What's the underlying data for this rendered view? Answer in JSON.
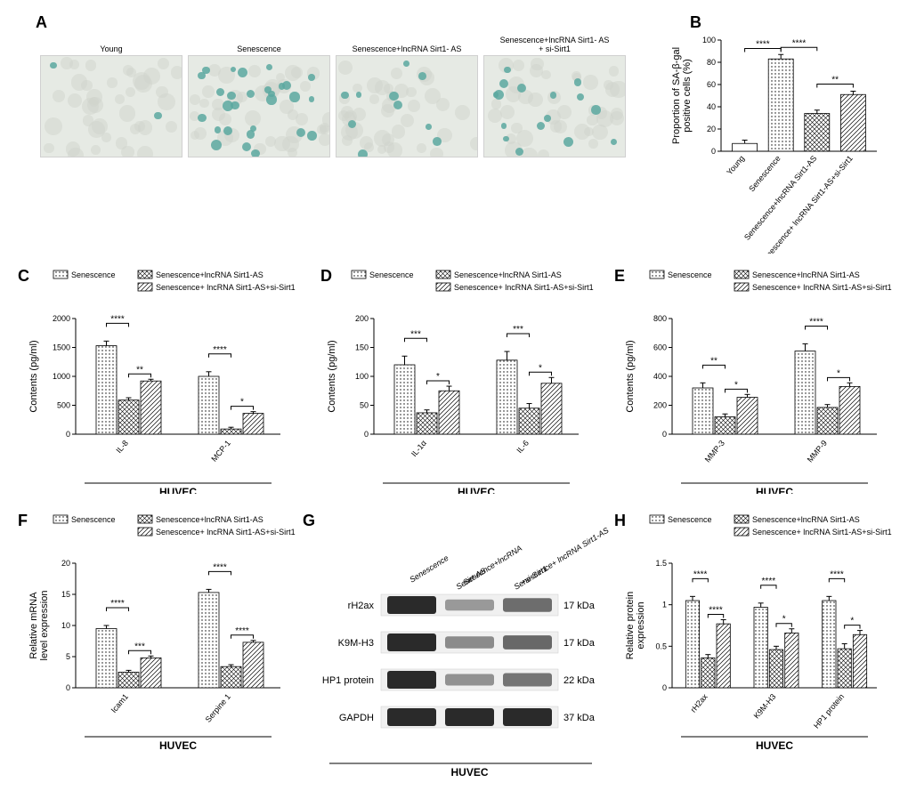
{
  "labels": {
    "A": "A",
    "B": "B",
    "C": "C",
    "D": "D",
    "E": "E",
    "F": "F",
    "G": "G",
    "H": "H"
  },
  "micro": {
    "titles": [
      "Young",
      "Senescence",
      "Senescence+lncRNA Sirt1- AS",
      "Senescence+lncRNA Sirt1- AS\n+ si-Sirt1"
    ],
    "bg": "#e6eae4",
    "cell_base": "#cfd3cc",
    "blue": "#5aa8a0",
    "blue_counts": [
      2,
      28,
      10,
      16
    ]
  },
  "colors": {
    "bar_outline": "#000000",
    "fill_white": "#ffffff",
    "axis": "#000000"
  },
  "patterns": {
    "young": {
      "type": "blank"
    },
    "sen": {
      "type": "dots",
      "spacing": 4
    },
    "senAS": {
      "type": "check",
      "spacing": 4
    },
    "senASsi": {
      "type": "diag",
      "spacing": 4
    }
  },
  "B": {
    "ytitle": "Proportion of SA-β-gal\npositive cells (%)",
    "ymax": 100,
    "ytick": 20,
    "cats": [
      "Young",
      "Senescence",
      "Senescence+lncRNA Sirt1-AS",
      "Senescence+ lncRNA Sirt1-AS+si-Sirt1"
    ],
    "vals": [
      7,
      83,
      34,
      51
    ],
    "errs": [
      3,
      4,
      3,
      3
    ],
    "fills": [
      "young",
      "sen",
      "senAS",
      "senASsi"
    ],
    "sigs": [
      {
        "i": 0,
        "j": 1,
        "t": "****",
        "lvl": 0
      },
      {
        "i": 1,
        "j": 2,
        "t": "****",
        "lvl": 0
      },
      {
        "i": 2,
        "j": 3,
        "t": "**",
        "lvl": 0
      }
    ]
  },
  "legend3": {
    "items": [
      {
        "f": "sen",
        "t": "Senescence"
      },
      {
        "f": "senAS",
        "t": "Senescence+lncRNA Sirt1-AS"
      },
      {
        "f": "senASsi",
        "t": "Senescence+ lncRNA Sirt1-AS+si-Sirt1"
      }
    ]
  },
  "C": {
    "ytitle": "Contents (pg/ml)",
    "ymax": 2000,
    "ytick": 500,
    "groups": [
      "IL-8",
      "MCP-1"
    ],
    "series": [
      "sen",
      "senAS",
      "senASsi"
    ],
    "vals": [
      [
        1530,
        590,
        920
      ],
      [
        1000,
        90,
        360
      ]
    ],
    "errs": [
      [
        80,
        40,
        30
      ],
      [
        80,
        30,
        30
      ]
    ],
    "sigs": [
      {
        "g": 0,
        "i": 0,
        "j": 1,
        "t": "****",
        "lvl": 1
      },
      {
        "g": 0,
        "i": 1,
        "j": 2,
        "t": "**",
        "lvl": 0
      },
      {
        "g": 1,
        "i": 0,
        "j": 1,
        "t": "****",
        "lvl": 1
      },
      {
        "g": 1,
        "i": 1,
        "j": 2,
        "t": "*",
        "lvl": 0
      }
    ],
    "under": "HUVEC"
  },
  "D": {
    "ytitle": "Contents (pg/ml)",
    "ymax": 200,
    "ytick": 50,
    "groups": [
      "IL-1α",
      "IL-6"
    ],
    "series": [
      "sen",
      "senAS",
      "senASsi"
    ],
    "vals": [
      [
        120,
        37,
        75
      ],
      [
        128,
        45,
        88
      ]
    ],
    "errs": [
      [
        15,
        5,
        8
      ],
      [
        15,
        8,
        10
      ]
    ],
    "sigs": [
      {
        "g": 0,
        "i": 0,
        "j": 1,
        "t": "***",
        "lvl": 1
      },
      {
        "g": 0,
        "i": 1,
        "j": 2,
        "t": "*",
        "lvl": 0
      },
      {
        "g": 1,
        "i": 0,
        "j": 1,
        "t": "***",
        "lvl": 1
      },
      {
        "g": 1,
        "i": 1,
        "j": 2,
        "t": "*",
        "lvl": 0
      }
    ],
    "under": "HUVEC"
  },
  "E": {
    "ytitle": "Contents (pg/ml)",
    "ymax": 800,
    "ytick": 200,
    "groups": [
      "MMP-3",
      "MMP-9"
    ],
    "series": [
      "sen",
      "senAS",
      "senASsi"
    ],
    "vals": [
      [
        320,
        120,
        255
      ],
      [
        575,
        185,
        330
      ]
    ],
    "errs": [
      [
        35,
        20,
        20
      ],
      [
        50,
        20,
        25
      ]
    ],
    "sigs": [
      {
        "g": 0,
        "i": 0,
        "j": 1,
        "t": "**",
        "lvl": 1
      },
      {
        "g": 0,
        "i": 1,
        "j": 2,
        "t": "*",
        "lvl": 0
      },
      {
        "g": 1,
        "i": 0,
        "j": 1,
        "t": "****",
        "lvl": 1
      },
      {
        "g": 1,
        "i": 1,
        "j": 2,
        "t": "*",
        "lvl": 0
      }
    ],
    "under": "HUVEC"
  },
  "F": {
    "ytitle": "Relative mRNA\nlevel expression",
    "ymax": 20,
    "ytick": 5,
    "groups": [
      "Icam1",
      "Serpine 1"
    ],
    "series": [
      "sen",
      "senAS",
      "senASsi"
    ],
    "vals": [
      [
        9.5,
        2.5,
        4.8
      ],
      [
        15.3,
        3.4,
        7.3
      ]
    ],
    "errs": [
      [
        0.5,
        0.3,
        0.3
      ],
      [
        0.5,
        0.3,
        0.3
      ]
    ],
    "sigs": [
      {
        "g": 0,
        "i": 0,
        "j": 1,
        "t": "****",
        "lvl": 1
      },
      {
        "g": 0,
        "i": 1,
        "j": 2,
        "t": "***",
        "lvl": 0
      },
      {
        "g": 1,
        "i": 0,
        "j": 1,
        "t": "****",
        "lvl": 1
      },
      {
        "g": 1,
        "i": 1,
        "j": 2,
        "t": "****",
        "lvl": 0
      }
    ],
    "under": "HUVEC"
  },
  "G": {
    "cols": [
      "Senescence",
      "Senescence+lncRNA\nSirt-AS",
      "Senescence+ lncRNA Sirt1-AS\n+si-Sirt1"
    ],
    "rows": [
      {
        "name": "rH2ax",
        "kda": "17 kDa",
        "int": [
          1.0,
          0.25,
          0.55
        ]
      },
      {
        "name": "K9M-H3",
        "kda": "17 kDa",
        "int": [
          1.0,
          0.35,
          0.58
        ]
      },
      {
        "name": "HP1 protein",
        "kda": "22 kDa",
        "int": [
          1.0,
          0.3,
          0.5
        ]
      },
      {
        "name": "GAPDH",
        "kda": "37 kDa",
        "int": [
          1.0,
          1.0,
          1.0
        ]
      }
    ],
    "under": "HUVEC"
  },
  "H": {
    "ytitle": "Relative protein\nexpression",
    "ymax": 1.5,
    "ytick": 0.5,
    "groups": [
      "rH2ax",
      "K9M-H3",
      "HP1 protein"
    ],
    "series": [
      "sen",
      "senAS",
      "senASsi"
    ],
    "vals": [
      [
        1.05,
        0.36,
        0.77
      ],
      [
        0.97,
        0.46,
        0.66
      ],
      [
        1.05,
        0.47,
        0.64
      ]
    ],
    "errs": [
      [
        0.05,
        0.04,
        0.05
      ],
      [
        0.05,
        0.04,
        0.05
      ],
      [
        0.05,
        0.06,
        0.05
      ]
    ],
    "sigs": [
      {
        "g": 0,
        "i": 0,
        "j": 1,
        "t": "****",
        "lvl": 1
      },
      {
        "g": 0,
        "i": 1,
        "j": 2,
        "t": "****",
        "lvl": 0
      },
      {
        "g": 1,
        "i": 0,
        "j": 1,
        "t": "****",
        "lvl": 1
      },
      {
        "g": 1,
        "i": 1,
        "j": 2,
        "t": "*",
        "lvl": 0
      },
      {
        "g": 2,
        "i": 0,
        "j": 1,
        "t": "****",
        "lvl": 1
      },
      {
        "g": 2,
        "i": 1,
        "j": 2,
        "t": "*",
        "lvl": 0
      }
    ],
    "under": "HUVEC"
  }
}
